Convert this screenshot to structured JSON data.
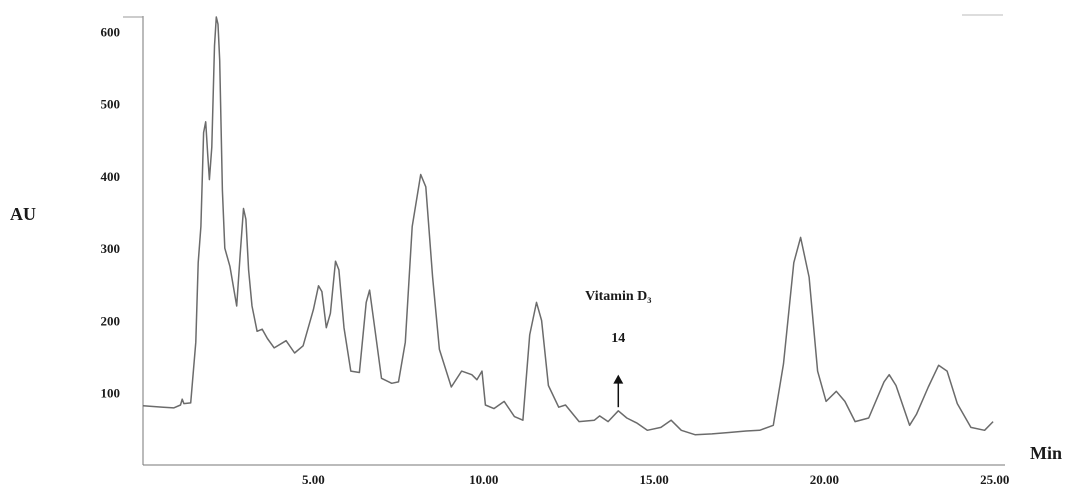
{
  "chart_data": {
    "type": "line",
    "xlabel": "Min",
    "ylabel": "AU",
    "xlim": [
      0,
      25.3
    ],
    "ylim": [
      0,
      620
    ],
    "x_ticks": [
      {
        "v": 5,
        "label": "5.00"
      },
      {
        "v": 10,
        "label": "10.00"
      },
      {
        "v": 15,
        "label": "15.00"
      },
      {
        "v": 20,
        "label": "20.00"
      },
      {
        "v": 25,
        "label": "25.00"
      }
    ],
    "y_ticks": [
      {
        "v": 100,
        "label": "100"
      },
      {
        "v": 200,
        "label": "200"
      },
      {
        "v": 300,
        "label": "300"
      },
      {
        "v": 400,
        "label": "400"
      },
      {
        "v": 500,
        "label": "500"
      },
      {
        "v": 600,
        "label": "600"
      }
    ],
    "grid": false,
    "line_color": "#6b6b6b",
    "series": [
      {
        "points": [
          [
            0.0,
            82
          ],
          [
            0.6,
            80
          ],
          [
            0.9,
            79
          ],
          [
            1.1,
            83
          ],
          [
            1.15,
            91
          ],
          [
            1.2,
            85
          ],
          [
            1.4,
            86
          ],
          [
            1.55,
            170
          ],
          [
            1.62,
            280
          ],
          [
            1.7,
            330
          ],
          [
            1.78,
            460
          ],
          [
            1.84,
            475
          ],
          [
            1.9,
            430
          ],
          [
            1.95,
            395
          ],
          [
            2.02,
            440
          ],
          [
            2.1,
            580
          ],
          [
            2.15,
            620
          ],
          [
            2.2,
            610
          ],
          [
            2.25,
            560
          ],
          [
            2.33,
            380
          ],
          [
            2.4,
            300
          ],
          [
            2.55,
            275
          ],
          [
            2.75,
            220
          ],
          [
            2.85,
            290
          ],
          [
            2.95,
            355
          ],
          [
            3.02,
            340
          ],
          [
            3.1,
            270
          ],
          [
            3.2,
            220
          ],
          [
            3.35,
            185
          ],
          [
            3.5,
            188
          ],
          [
            3.65,
            175
          ],
          [
            3.85,
            162
          ],
          [
            4.2,
            172
          ],
          [
            4.45,
            155
          ],
          [
            4.7,
            165
          ],
          [
            5.0,
            215
          ],
          [
            5.15,
            248
          ],
          [
            5.25,
            240
          ],
          [
            5.38,
            190
          ],
          [
            5.5,
            210
          ],
          [
            5.65,
            282
          ],
          [
            5.75,
            270
          ],
          [
            5.9,
            190
          ],
          [
            6.1,
            130
          ],
          [
            6.35,
            128
          ],
          [
            6.55,
            225
          ],
          [
            6.65,
            242
          ],
          [
            6.8,
            190
          ],
          [
            7.0,
            120
          ],
          [
            7.3,
            113
          ],
          [
            7.5,
            115
          ],
          [
            7.7,
            170
          ],
          [
            7.9,
            330
          ],
          [
            8.15,
            402
          ],
          [
            8.3,
            385
          ],
          [
            8.5,
            260
          ],
          [
            8.7,
            160
          ],
          [
            9.05,
            108
          ],
          [
            9.35,
            130
          ],
          [
            9.65,
            125
          ],
          [
            9.8,
            118
          ],
          [
            9.95,
            130
          ],
          [
            10.05,
            83
          ],
          [
            10.3,
            78
          ],
          [
            10.6,
            88
          ],
          [
            10.9,
            67
          ],
          [
            11.15,
            62
          ],
          [
            11.35,
            180
          ],
          [
            11.55,
            225
          ],
          [
            11.7,
            200
          ],
          [
            11.9,
            110
          ],
          [
            12.2,
            80
          ],
          [
            12.4,
            83
          ],
          [
            12.8,
            60
          ],
          [
            13.25,
            62
          ],
          [
            13.4,
            68
          ],
          [
            13.65,
            60
          ],
          [
            13.95,
            75
          ],
          [
            14.2,
            65
          ],
          [
            14.5,
            58
          ],
          [
            14.8,
            48
          ],
          [
            15.2,
            52
          ],
          [
            15.5,
            62
          ],
          [
            15.8,
            48
          ],
          [
            16.2,
            42
          ],
          [
            16.7,
            43
          ],
          [
            17.2,
            45
          ],
          [
            17.7,
            47
          ],
          [
            18.1,
            48
          ],
          [
            18.5,
            55
          ],
          [
            18.8,
            140
          ],
          [
            19.1,
            280
          ],
          [
            19.3,
            315
          ],
          [
            19.55,
            260
          ],
          [
            19.8,
            130
          ],
          [
            20.05,
            88
          ],
          [
            20.35,
            102
          ],
          [
            20.6,
            88
          ],
          [
            20.9,
            60
          ],
          [
            21.3,
            65
          ],
          [
            21.75,
            115
          ],
          [
            21.9,
            125
          ],
          [
            22.1,
            110
          ],
          [
            22.5,
            55
          ],
          [
            22.7,
            70
          ],
          [
            23.05,
            108
          ],
          [
            23.35,
            138
          ],
          [
            23.6,
            130
          ],
          [
            23.9,
            85
          ],
          [
            24.3,
            52
          ],
          [
            24.7,
            48
          ],
          [
            24.95,
            60
          ]
        ]
      }
    ],
    "annotations": [
      {
        "text": "Vitamin D₃",
        "x": 13.95
      },
      {
        "text": "14",
        "x": 13.95
      }
    ],
    "arrow": {
      "x": 13.95,
      "y_from": 80,
      "y_to": 125
    }
  }
}
